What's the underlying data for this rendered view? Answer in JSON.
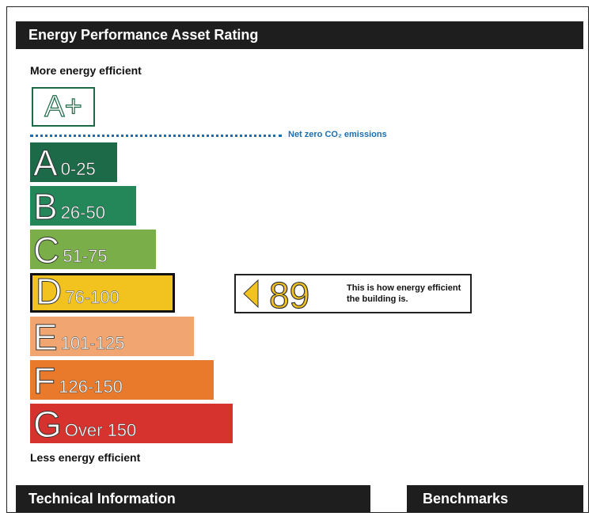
{
  "header": {
    "title": "Energy Performance Asset Rating"
  },
  "scale": {
    "top_label": "More energy efficient",
    "bottom_label": "Less energy efficient",
    "net_zero": {
      "letter": "A+",
      "note": "Net zero CO₂ emissions"
    },
    "bands": [
      {
        "letter": "A",
        "range": "0-25",
        "color": "#1c6a48"
      },
      {
        "letter": "B",
        "range": "26-50",
        "color": "#23875a"
      },
      {
        "letter": "C",
        "range": "51-75",
        "color": "#7aae48"
      },
      {
        "letter": "D",
        "range": "76-100",
        "color": "#f2c31e",
        "highlighted": true
      },
      {
        "letter": "E",
        "range": "101-125",
        "color": "#f1a672"
      },
      {
        "letter": "F",
        "range": "126-150",
        "color": "#e97a2c"
      },
      {
        "letter": "G",
        "range": "Over 150",
        "color": "#d6332f"
      }
    ]
  },
  "rating": {
    "value": 89,
    "description_lines": [
      "This is how energy efficient",
      "the building is."
    ]
  },
  "sections": [
    "Technical Information",
    "Benchmarks"
  ]
}
